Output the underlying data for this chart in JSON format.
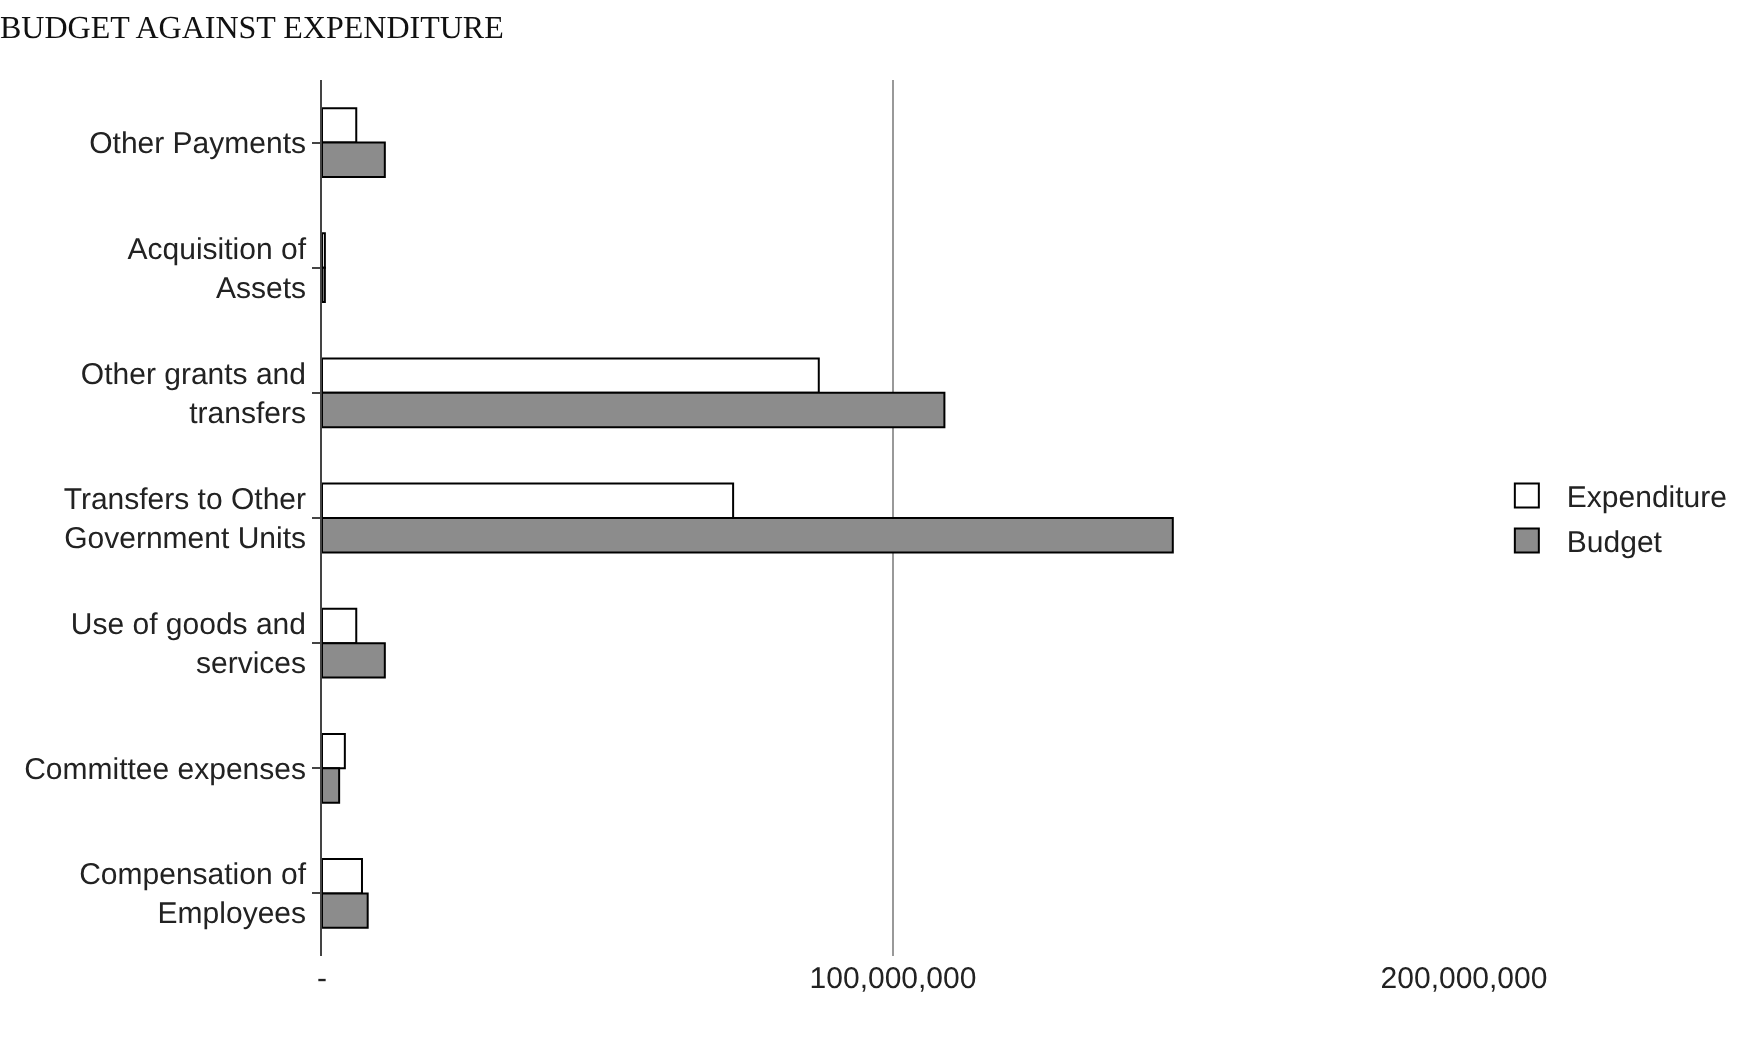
{
  "chart_data": {
    "type": "bar",
    "orientation": "horizontal",
    "title": "BUDGET AGAINST EXPENDITURE",
    "categories": [
      "Other Payments",
      "Acquisition of Assets",
      "Other grants and transfers",
      "Transfers to Other Government Units",
      "Use of goods and services",
      "Committee expenses",
      "Compensation of Employees"
    ],
    "series": [
      {
        "name": "Expenditure",
        "color": "#ffffff",
        "values": [
          6000000,
          500000,
          87000000,
          72000000,
          6000000,
          4000000,
          7000000
        ]
      },
      {
        "name": "Budget",
        "color": "#8c8c8c",
        "values": [
          11000000,
          500000,
          109000000,
          149000000,
          11000000,
          3000000,
          8000000
        ]
      }
    ],
    "xlim": [
      0,
      200000000
    ],
    "xticks": [
      {
        "value": 0,
        "label": "-"
      },
      {
        "value": 100000000,
        "label": "100,000,000"
      },
      {
        "value": 200000000,
        "label": "200,000,000"
      }
    ],
    "grid": "x",
    "legend": "right"
  }
}
